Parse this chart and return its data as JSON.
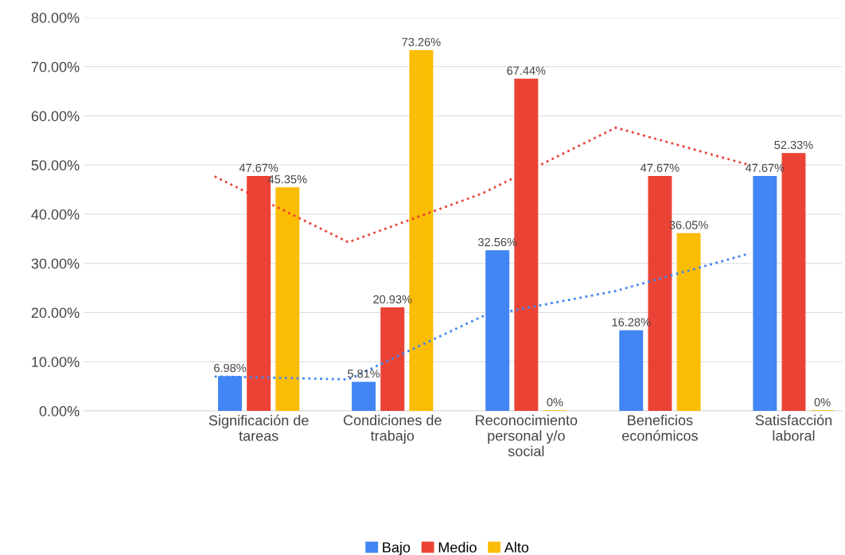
{
  "chart_data": {
    "type": "bar",
    "categories": [
      null,
      "Significación de\ntareas",
      "Condiciones de\ntrabajo",
      "Reconocimiento\npersonal y/o\nsocial",
      "Beneficios\neconómicos",
      "Satisfacción\nlaboral"
    ],
    "series": [
      {
        "name": "Bajo",
        "color": "#4285f4",
        "values": [
          null,
          6.98,
          5.81,
          32.56,
          16.28,
          47.67
        ],
        "value_labels": [
          null,
          "6.98%",
          "5.81%",
          "32.56%",
          "16.28%",
          "47.67%"
        ]
      },
      {
        "name": "Medio",
        "color": "#ea4335",
        "values": [
          null,
          47.67,
          20.93,
          67.44,
          47.67,
          52.33
        ],
        "value_labels": [
          null,
          "47.67%",
          "20.93%",
          "67.44%",
          "47.67%",
          "52.33%"
        ]
      },
      {
        "name": "Alto",
        "color": "#fbbc04",
        "values": [
          null,
          45.35,
          73.26,
          0,
          36.05,
          0
        ],
        "value_labels": [
          null,
          "45.35%",
          "73.26%",
          "0%",
          "36.05%",
          "0%"
        ]
      },
      {
        "type": "line",
        "color": "#4285f4",
        "line_style": "dotted",
        "values": [
          null,
          7.0,
          6.4,
          19.2,
          24.4,
          32.0
        ]
      },
      {
        "type": "line",
        "color": "#ea4335",
        "line_style": "dotted",
        "values": [
          null,
          47.7,
          34.3,
          44.2,
          57.6,
          50.0
        ]
      }
    ],
    "ylim": [
      0,
      80
    ],
    "yticks": [
      {
        "value": 0,
        "label": "0.00%"
      },
      {
        "value": 10,
        "label": "10.00%"
      },
      {
        "value": 20,
        "label": "20.00%"
      },
      {
        "value": 30,
        "label": "30.00%"
      },
      {
        "value": 40,
        "label": "40.00%"
      },
      {
        "value": 50,
        "label": "50.00%"
      },
      {
        "value": 60,
        "label": "60.00%"
      },
      {
        "value": 70,
        "label": "70.00%"
      },
      {
        "value": 80,
        "label": "80.00%"
      }
    ],
    "grid": "y",
    "legend": "bottom"
  }
}
